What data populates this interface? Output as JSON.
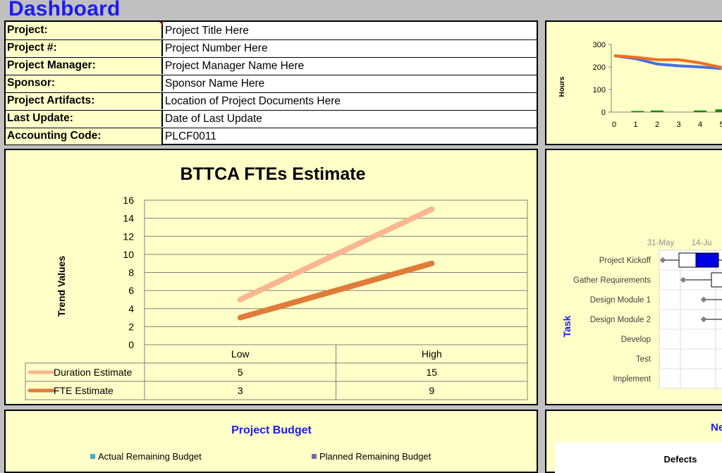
{
  "page": {
    "title": "Dashboard"
  },
  "info": {
    "rows": [
      {
        "label": "Project:",
        "value": "Project Title Here"
      },
      {
        "label": "Project #:",
        "value": "Project Number Here"
      },
      {
        "label": "Project Manager:",
        "value": "Project Manager Name Here"
      },
      {
        "label": "Sponsor:",
        "value": "Sponsor Name Here"
      },
      {
        "label": "Project Artifacts:",
        "value": "Location of Project Documents Here"
      },
      {
        "label": "Last Update:",
        "value": "Date of Last Update"
      },
      {
        "label": "Accounting Code:",
        "value": "PLCF0011"
      }
    ]
  },
  "hours_chart": {
    "ylabel": "Hours",
    "y_ticks": [
      "0",
      "100",
      "200",
      "300"
    ],
    "x_ticks": [
      "0",
      "1",
      "2",
      "3",
      "4",
      "5"
    ],
    "colors": {
      "blue": "#4a6ee0",
      "orange": "#f07020",
      "green": "#138a13"
    }
  },
  "fte_chart": {
    "title": "BTTCA FTEs Estimate",
    "ylabel": "Trend Values",
    "y_ticks": [
      "0",
      "2",
      "4",
      "6",
      "8",
      "10",
      "12",
      "14",
      "16"
    ],
    "categories": [
      "Low",
      "High"
    ],
    "series": [
      {
        "name": "Duration Estimate",
        "values": [
          "5",
          "15"
        ],
        "color": "#f8b792"
      },
      {
        "name": "FTE Estimate",
        "values": [
          "3",
          "9"
        ],
        "color": "#e07b39"
      }
    ]
  },
  "gantt": {
    "ylabel": "Task",
    "dates": [
      "31-May",
      "14-Ju"
    ],
    "tasks": [
      "Project Kickoff",
      "Gather Requirements",
      "Design Module 1",
      "Design Module 2",
      "Develop",
      "Test",
      "Implement"
    ]
  },
  "budget": {
    "title": "Project Budget",
    "legend": [
      "Actual Remaining Budget",
      "Planned Remaining Budget"
    ],
    "legend_colors": [
      "#4bacc6",
      "#8064a2"
    ]
  },
  "defects": {
    "title_partial": "Ne",
    "chart_title": "Defects"
  },
  "chart_data": [
    {
      "type": "line",
      "title": "",
      "xlabel": "",
      "ylabel": "Hours",
      "x": [
        0,
        1,
        2,
        3,
        4,
        5
      ],
      "ylim": [
        0,
        300
      ],
      "series": [
        {
          "values": [
            250,
            237,
            213,
            205,
            200,
            193
          ]
        },
        {
          "values": [
            250,
            243,
            232,
            232,
            218,
            198
          ]
        }
      ],
      "bars": [
        0,
        5,
        7,
        0,
        7,
        12
      ]
    },
    {
      "type": "line",
      "title": "BTTCA FTEs Estimate",
      "ylabel": "Trend Values",
      "categories": [
        "Low",
        "High"
      ],
      "ylim": [
        0,
        16
      ],
      "series": [
        {
          "name": "Duration Estimate",
          "values": [
            5,
            15
          ]
        },
        {
          "name": "FTE Estimate",
          "values": [
            3,
            9
          ]
        }
      ]
    }
  ]
}
